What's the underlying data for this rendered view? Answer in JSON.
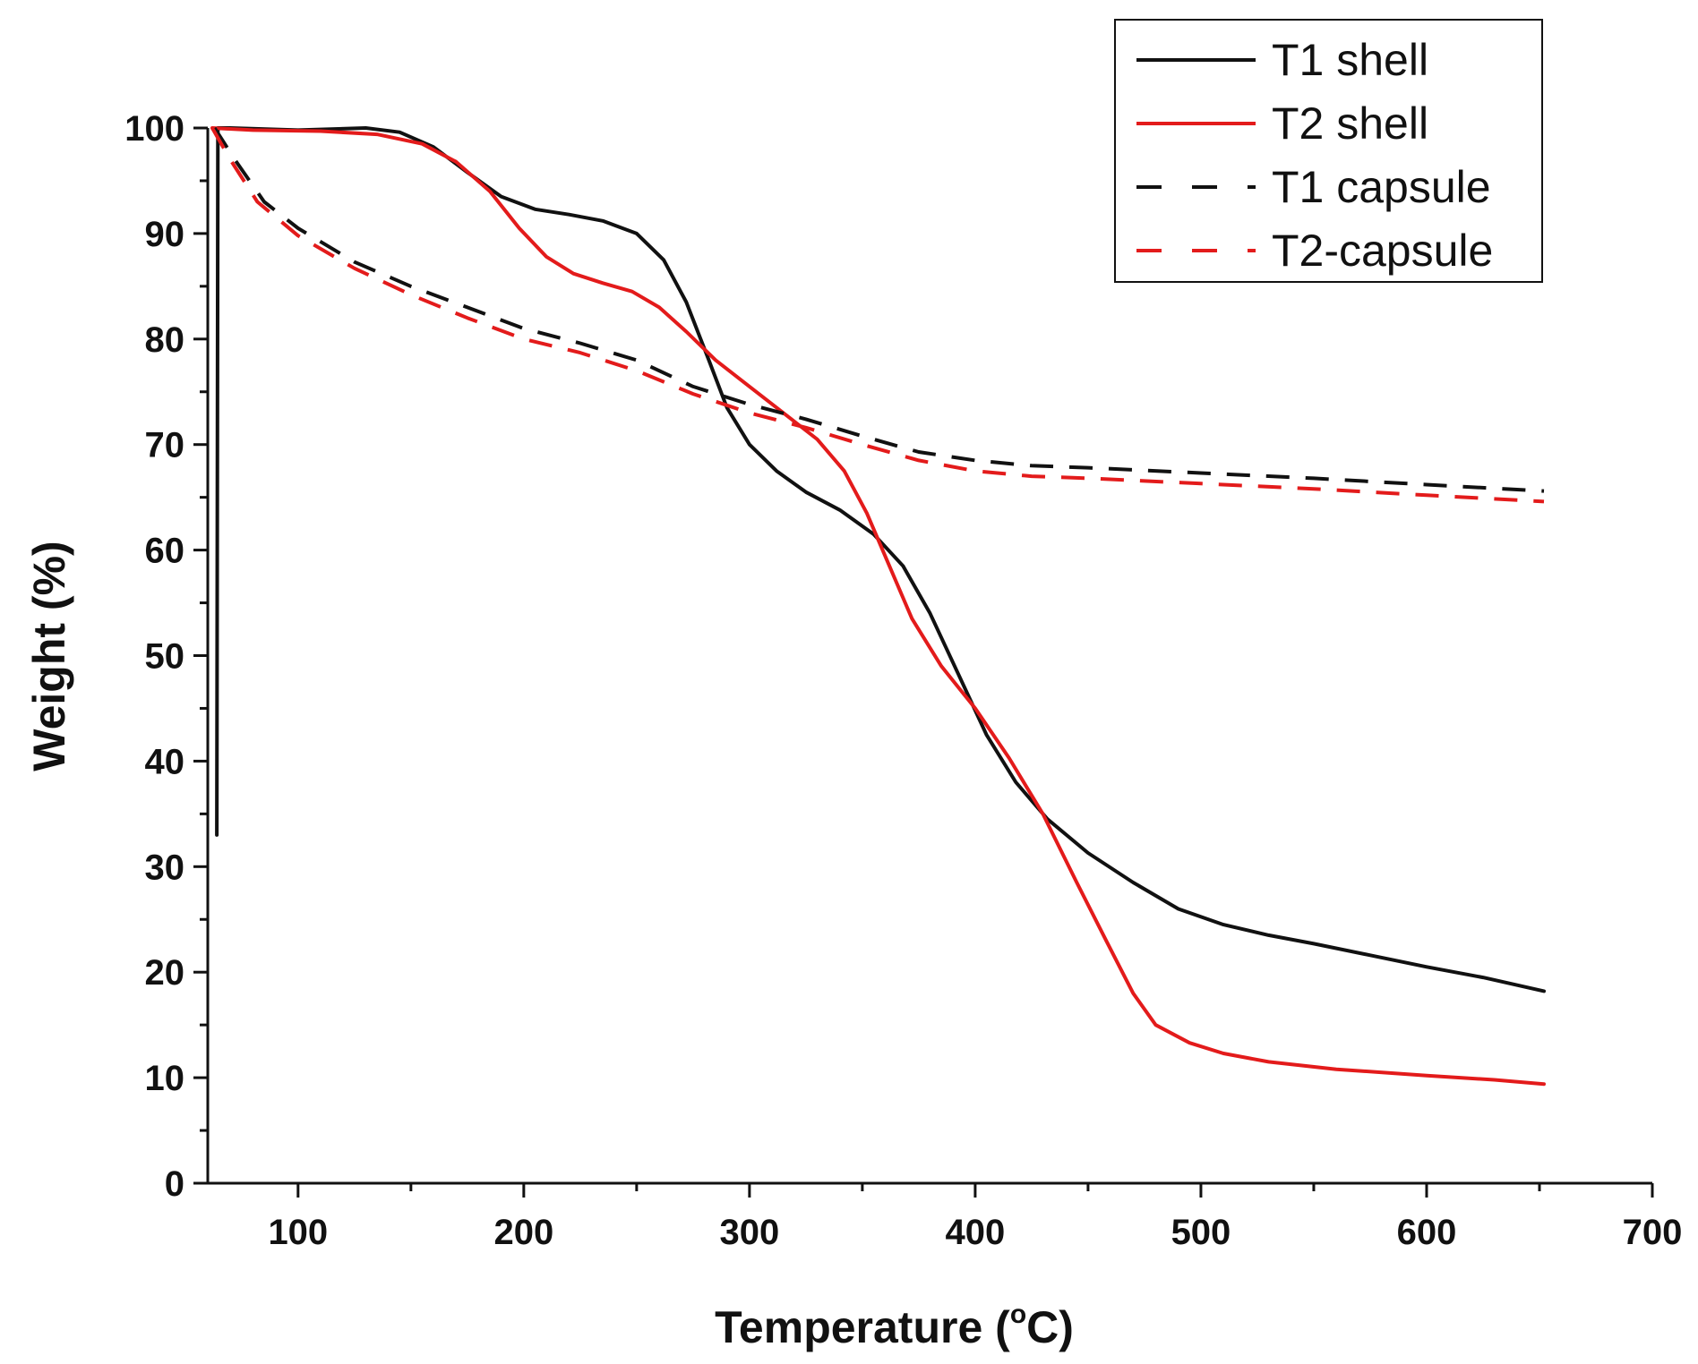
{
  "chart_data": {
    "type": "line",
    "title": "",
    "xlabel": {
      "main": "Temperature (",
      "sup": "o",
      "unit": "C)"
    },
    "ylabel": "Weight (%)",
    "xlim": [
      60,
      700
    ],
    "ylim": [
      0,
      100
    ],
    "xticks": [
      100,
      200,
      300,
      400,
      500,
      600,
      700
    ],
    "yticks": [
      0,
      10,
      20,
      30,
      40,
      50,
      60,
      70,
      80,
      90,
      100
    ],
    "grid": false,
    "legend_position": "top-right",
    "series": [
      {
        "name": "T1 shell",
        "color": "#111111",
        "dash": "solid",
        "points": [
          [
            64,
            33
          ],
          [
            64.5,
            100
          ],
          [
            70,
            100
          ],
          [
            100,
            99.8
          ],
          [
            130,
            100
          ],
          [
            145,
            99.6
          ],
          [
            160,
            98.2
          ],
          [
            175,
            95.8
          ],
          [
            190,
            93.5
          ],
          [
            205,
            92.3
          ],
          [
            220,
            91.8
          ],
          [
            235,
            91.2
          ],
          [
            250,
            90
          ],
          [
            262,
            87.5
          ],
          [
            272,
            83.5
          ],
          [
            282,
            78
          ],
          [
            290,
            73.5
          ],
          [
            300,
            70
          ],
          [
            312,
            67.5
          ],
          [
            325,
            65.5
          ],
          [
            340,
            63.8
          ],
          [
            355,
            61.5
          ],
          [
            368,
            58.5
          ],
          [
            380,
            54
          ],
          [
            392,
            48.5
          ],
          [
            405,
            42.5
          ],
          [
            418,
            38
          ],
          [
            432,
            34.5
          ],
          [
            450,
            31.3
          ],
          [
            470,
            28.5
          ],
          [
            490,
            26
          ],
          [
            510,
            24.5
          ],
          [
            530,
            23.5
          ],
          [
            550,
            22.7
          ],
          [
            575,
            21.6
          ],
          [
            600,
            20.5
          ],
          [
            625,
            19.5
          ],
          [
            652,
            18.2
          ]
        ]
      },
      {
        "name": "T2 shell",
        "color": "#e31b1b",
        "dash": "solid",
        "points": [
          [
            62,
            100
          ],
          [
            80,
            99.8
          ],
          [
            110,
            99.7
          ],
          [
            135,
            99.4
          ],
          [
            155,
            98.5
          ],
          [
            170,
            96.8
          ],
          [
            185,
            94
          ],
          [
            198,
            90.5
          ],
          [
            210,
            87.8
          ],
          [
            222,
            86.2
          ],
          [
            235,
            85.3
          ],
          [
            248,
            84.5
          ],
          [
            260,
            83
          ],
          [
            272,
            80.7
          ],
          [
            285,
            78
          ],
          [
            300,
            75.5
          ],
          [
            318,
            72.5
          ],
          [
            330,
            70.5
          ],
          [
            342,
            67.5
          ],
          [
            352,
            63.5
          ],
          [
            362,
            58.5
          ],
          [
            372,
            53.5
          ],
          [
            385,
            49
          ],
          [
            400,
            45
          ],
          [
            415,
            40.3
          ],
          [
            430,
            35
          ],
          [
            445,
            28.5
          ],
          [
            458,
            23
          ],
          [
            470,
            18
          ],
          [
            480,
            15
          ],
          [
            495,
            13.3
          ],
          [
            510,
            12.3
          ],
          [
            530,
            11.5
          ],
          [
            560,
            10.8
          ],
          [
            600,
            10.2
          ],
          [
            630,
            9.8
          ],
          [
            652,
            9.4
          ]
        ]
      },
      {
        "name": "T1 capsule",
        "color": "#111111",
        "dash": "dashed",
        "points": [
          [
            63,
            100
          ],
          [
            72,
            97
          ],
          [
            85,
            93
          ],
          [
            100,
            90.5
          ],
          [
            125,
            87.3
          ],
          [
            150,
            85
          ],
          [
            175,
            83
          ],
          [
            200,
            81
          ],
          [
            225,
            79.6
          ],
          [
            250,
            78
          ],
          [
            275,
            75.5
          ],
          [
            300,
            73.8
          ],
          [
            325,
            72.4
          ],
          [
            350,
            70.8
          ],
          [
            375,
            69.3
          ],
          [
            400,
            68.5
          ],
          [
            425,
            68
          ],
          [
            450,
            67.8
          ],
          [
            500,
            67.3
          ],
          [
            550,
            66.8
          ],
          [
            600,
            66.2
          ],
          [
            652,
            65.6
          ]
        ]
      },
      {
        "name": "T2-capsule",
        "color": "#e31b1b",
        "dash": "dashed",
        "points": [
          [
            62,
            100
          ],
          [
            70,
            97
          ],
          [
            82,
            93
          ],
          [
            100,
            89.8
          ],
          [
            125,
            86.7
          ],
          [
            150,
            84.2
          ],
          [
            175,
            82
          ],
          [
            200,
            80
          ],
          [
            225,
            78.7
          ],
          [
            250,
            77
          ],
          [
            275,
            74.8
          ],
          [
            300,
            73
          ],
          [
            325,
            71.6
          ],
          [
            350,
            70
          ],
          [
            375,
            68.5
          ],
          [
            400,
            67.5
          ],
          [
            425,
            67
          ],
          [
            450,
            66.8
          ],
          [
            500,
            66.3
          ],
          [
            550,
            65.8
          ],
          [
            600,
            65.2
          ],
          [
            652,
            64.6
          ]
        ]
      }
    ]
  }
}
